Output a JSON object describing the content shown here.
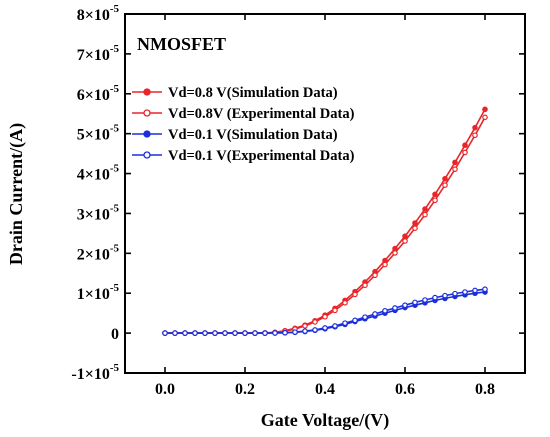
{
  "chart_data": {
    "type": "line",
    "annotation": "NMOSFET",
    "xlabel": "Gate Voltage/(V)",
    "ylabel": "Drain Current/(A)",
    "xlim": [
      -0.1,
      0.9
    ],
    "ylim": [
      -1e-05,
      8e-05
    ],
    "x_ticks": [
      {
        "value": 0.0,
        "label": "0.0"
      },
      {
        "value": 0.2,
        "label": "0.2"
      },
      {
        "value": 0.4,
        "label": "0.4"
      },
      {
        "value": 0.6,
        "label": "0.6"
      },
      {
        "value": 0.8,
        "label": "0.8"
      }
    ],
    "y_ticks": [
      {
        "value": -1e-05,
        "mant": "-1×10",
        "exp": "-5"
      },
      {
        "value": 0,
        "mant": "0",
        "exp": ""
      },
      {
        "value": 1e-05,
        "mant": "1×10",
        "exp": "-5"
      },
      {
        "value": 2e-05,
        "mant": "2×10",
        "exp": "-5"
      },
      {
        "value": 3e-05,
        "mant": "3×10",
        "exp": "-5"
      },
      {
        "value": 4e-05,
        "mant": "4×10",
        "exp": "-5"
      },
      {
        "value": 5e-05,
        "mant": "5×10",
        "exp": "-5"
      },
      {
        "value": 6e-05,
        "mant": "6×10",
        "exp": "-5"
      },
      {
        "value": 7e-05,
        "mant": "7×10",
        "exp": "-5"
      },
      {
        "value": 8e-05,
        "mant": "8×10",
        "exp": "-5"
      }
    ],
    "legend_position": "upper-left",
    "grid": false,
    "series": [
      {
        "name": "Vd=0.8 V(Simulation Data)",
        "color": "#e8262a",
        "marker": "filled-circle",
        "x": [
          0.0,
          0.025,
          0.05,
          0.075,
          0.1,
          0.125,
          0.15,
          0.175,
          0.2,
          0.225,
          0.25,
          0.275,
          0.3,
          0.325,
          0.35,
          0.375,
          0.4,
          0.425,
          0.45,
          0.475,
          0.5,
          0.525,
          0.55,
          0.575,
          0.6,
          0.625,
          0.65,
          0.675,
          0.7,
          0.725,
          0.75,
          0.775,
          0.8
        ],
        "y": [
          0,
          0,
          0,
          0,
          0,
          0,
          0,
          0,
          0,
          0,
          5e-08,
          2e-07,
          6e-07,
          1.2e-06,
          2e-06,
          3.1e-06,
          4.5e-06,
          6.2e-06,
          8.2e-06,
          1.04e-05,
          1.28e-05,
          1.54e-05,
          1.82e-05,
          2.12e-05,
          2.43e-05,
          2.76e-05,
          3.11e-05,
          3.48e-05,
          3.87e-05,
          4.28e-05,
          4.71e-05,
          5.15e-05,
          5.61e-05
        ]
      },
      {
        "name": "Vd=0.8V (Experimental Data)",
        "color": "#e8262a",
        "marker": "open-circle",
        "x": [
          0.0,
          0.025,
          0.05,
          0.075,
          0.1,
          0.125,
          0.15,
          0.175,
          0.2,
          0.225,
          0.25,
          0.275,
          0.3,
          0.325,
          0.35,
          0.375,
          0.4,
          0.425,
          0.45,
          0.475,
          0.5,
          0.525,
          0.55,
          0.575,
          0.6,
          0.625,
          0.65,
          0.675,
          0.7,
          0.725,
          0.75,
          0.775,
          0.8
        ],
        "y": [
          0,
          0,
          0,
          0,
          0,
          0,
          0,
          0,
          0,
          0,
          3e-08,
          1.5e-07,
          5e-07,
          1e-06,
          1.8e-06,
          2.8e-06,
          4.1e-06,
          5.7e-06,
          7.6e-06,
          9.7e-06,
          1.2e-05,
          1.45e-05,
          1.72e-05,
          2.01e-05,
          2.31e-05,
          2.63e-05,
          2.97e-05,
          3.33e-05,
          3.71e-05,
          4.11e-05,
          4.53e-05,
          4.96e-05,
          5.41e-05
        ]
      },
      {
        "name": "Vd=0.1 V(Simulation Data)",
        "color": "#1c2fdc",
        "marker": "filled-circle",
        "x": [
          0.0,
          0.025,
          0.05,
          0.075,
          0.1,
          0.125,
          0.15,
          0.175,
          0.2,
          0.225,
          0.25,
          0.275,
          0.3,
          0.325,
          0.35,
          0.375,
          0.4,
          0.425,
          0.45,
          0.475,
          0.5,
          0.525,
          0.55,
          0.575,
          0.6,
          0.625,
          0.65,
          0.675,
          0.7,
          0.725,
          0.75,
          0.775,
          0.8
        ],
        "y": [
          0,
          0,
          0,
          0,
          0,
          0,
          0,
          0,
          0,
          0,
          0,
          2e-08,
          8e-08,
          2e-07,
          4e-07,
          7e-07,
          1.1e-06,
          1.6e-06,
          2.2e-06,
          2.9e-06,
          3.6e-06,
          4.3e-06,
          5e-06,
          5.7e-06,
          6.4e-06,
          7e-06,
          7.6e-06,
          8.2e-06,
          8.7e-06,
          9.2e-06,
          9.6e-06,
          1e-05,
          1.03e-05
        ]
      },
      {
        "name": "Vd=0.1 V(Experimental Data)",
        "color": "#1c2fdc",
        "marker": "open-circle",
        "x": [
          0.0,
          0.025,
          0.05,
          0.075,
          0.1,
          0.125,
          0.15,
          0.175,
          0.2,
          0.225,
          0.25,
          0.275,
          0.3,
          0.325,
          0.35,
          0.375,
          0.4,
          0.425,
          0.45,
          0.475,
          0.5,
          0.525,
          0.55,
          0.575,
          0.6,
          0.625,
          0.65,
          0.675,
          0.7,
          0.725,
          0.75,
          0.775,
          0.8
        ],
        "y": [
          0,
          0,
          0,
          0,
          0,
          0,
          0,
          0,
          0,
          0,
          0,
          3e-08,
          1e-07,
          2.5e-07,
          5e-07,
          8e-07,
          1.3e-06,
          1.8e-06,
          2.5e-06,
          3.2e-06,
          4e-06,
          4.8e-06,
          5.6e-06,
          6.3e-06,
          7e-06,
          7.7e-06,
          8.3e-06,
          8.9e-06,
          9.4e-06,
          9.9e-06,
          1.03e-05,
          1.07e-05,
          1.1e-05
        ]
      }
    ]
  }
}
